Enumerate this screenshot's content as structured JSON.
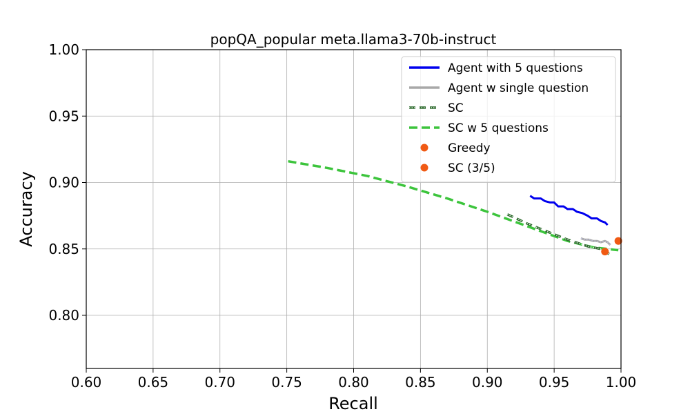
{
  "chart_data": {
    "type": "line",
    "title": "popQA_popular meta.llama3-70b-instruct",
    "xlabel": "Recall",
    "ylabel": "Accuracy",
    "xlim": [
      0.6,
      1.0
    ],
    "ylim": [
      0.76,
      1.0
    ],
    "xticks": [
      0.6,
      0.65,
      0.7,
      0.75,
      0.8,
      0.85,
      0.9,
      0.95,
      1.0
    ],
    "xtick_labels": [
      "0.60",
      "0.65",
      "0.70",
      "0.75",
      "0.80",
      "0.85",
      "0.90",
      "0.95",
      "1.00"
    ],
    "yticks": [
      0.8,
      0.85,
      0.9,
      0.95,
      1.0
    ],
    "ytick_labels": [
      "0.80",
      "0.85",
      "0.90",
      "0.95",
      "1.00"
    ],
    "grid": true,
    "legend_position": "upper right",
    "series": [
      {
        "name": "Agent with 5 questions",
        "kind": "line",
        "color": "#0000ee",
        "dash": "solid",
        "x": [
          0.932,
          0.935,
          0.94,
          0.943,
          0.947,
          0.95,
          0.953,
          0.957,
          0.96,
          0.964,
          0.967,
          0.971,
          0.975,
          0.978,
          0.982,
          0.985,
          0.988,
          0.99
        ],
        "y": [
          0.89,
          0.888,
          0.888,
          0.886,
          0.885,
          0.885,
          0.882,
          0.882,
          0.88,
          0.88,
          0.878,
          0.877,
          0.875,
          0.873,
          0.873,
          0.871,
          0.87,
          0.868
        ]
      },
      {
        "name": "Agent w single question",
        "kind": "line",
        "color": "#a8a8a8",
        "dash": "solid",
        "x": [
          0.97,
          0.973,
          0.976,
          0.979,
          0.982,
          0.985,
          0.988,
          0.99,
          0.992
        ],
        "y": [
          0.858,
          0.857,
          0.857,
          0.856,
          0.856,
          0.855,
          0.856,
          0.855,
          0.853
        ]
      },
      {
        "name": "SC",
        "kind": "line",
        "color": "#2e6b2e",
        "dash": "dotted-dash",
        "x": [
          0.915,
          0.93,
          0.945,
          0.96,
          0.975,
          0.985,
          0.993
        ],
        "y": [
          0.876,
          0.869,
          0.863,
          0.857,
          0.852,
          0.85,
          0.845
        ]
      },
      {
        "name": "SC w 5 questions",
        "kind": "line",
        "color": "#3cc43c",
        "dash": "dashed",
        "x": [
          0.751,
          0.78,
          0.81,
          0.84,
          0.87,
          0.9,
          0.93,
          0.96,
          0.98,
          0.99,
          0.998
        ],
        "y": [
          0.916,
          0.911,
          0.905,
          0.897,
          0.888,
          0.878,
          0.867,
          0.856,
          0.851,
          0.85,
          0.849
        ]
      },
      {
        "name": "Greedy",
        "kind": "point",
        "color": "#f05a14",
        "x": [
          0.998
        ],
        "y": [
          0.856
        ]
      },
      {
        "name": "SC (3/5)",
        "kind": "point",
        "color": "#f05a14",
        "x": [
          0.988
        ],
        "y": [
          0.848
        ]
      }
    ]
  }
}
